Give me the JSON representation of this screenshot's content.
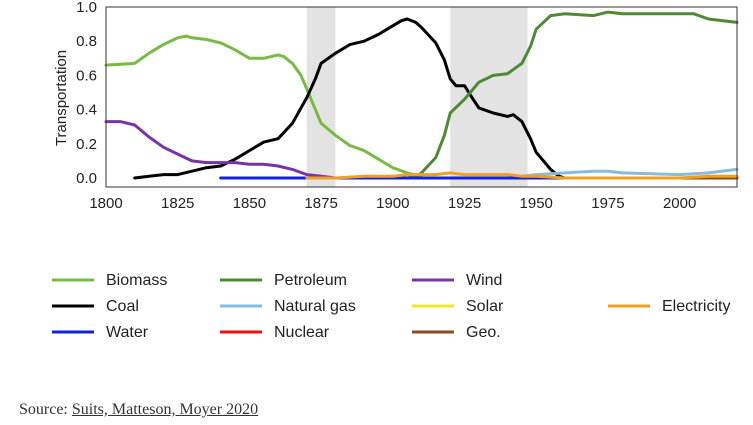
{
  "chart_data": {
    "type": "line",
    "title": "",
    "xlabel": "",
    "ylabel": "Transportation",
    "xlim": [
      1800,
      2020
    ],
    "ylim": [
      0,
      1.0
    ],
    "xticks": [
      "1800",
      "1825",
      "1850",
      "1875",
      "1900",
      "1925",
      "1950",
      "1975",
      "2000"
    ],
    "yticks": [
      "0.0",
      "0.2",
      "0.4",
      "0.6",
      "0.8",
      "1.0"
    ],
    "shaded_periods": [
      [
        1870,
        1880
      ],
      [
        1920,
        1947
      ]
    ],
    "grid": false,
    "legend_position": "below",
    "series": [
      {
        "name": "Biomass",
        "color": "#77bb44",
        "x": [
          1800,
          1810,
          1815,
          1820,
          1825,
          1828,
          1830,
          1835,
          1840,
          1845,
          1850,
          1855,
          1860,
          1862,
          1865,
          1868,
          1870,
          1873,
          1875,
          1880,
          1885,
          1890,
          1895,
          1900,
          1905,
          1910
        ],
        "y": [
          0.66,
          0.67,
          0.73,
          0.78,
          0.82,
          0.83,
          0.82,
          0.81,
          0.79,
          0.75,
          0.7,
          0.7,
          0.72,
          0.71,
          0.67,
          0.6,
          0.52,
          0.4,
          0.32,
          0.25,
          0.19,
          0.16,
          0.11,
          0.06,
          0.03,
          0.01
        ]
      },
      {
        "name": "Coal",
        "color": "#000000",
        "x": [
          1810,
          1815,
          1820,
          1825,
          1830,
          1835,
          1840,
          1845,
          1850,
          1855,
          1860,
          1865,
          1870,
          1873,
          1875,
          1880,
          1885,
          1890,
          1895,
          1900,
          1903,
          1905,
          1908,
          1910,
          1915,
          1918,
          1920,
          1922,
          1925,
          1928,
          1930,
          1935,
          1940,
          1942,
          1945,
          1948,
          1950,
          1955,
          1958,
          1960
        ],
        "y": [
          0.0,
          0.01,
          0.02,
          0.02,
          0.04,
          0.06,
          0.07,
          0.11,
          0.16,
          0.21,
          0.23,
          0.32,
          0.47,
          0.58,
          0.67,
          0.73,
          0.78,
          0.8,
          0.84,
          0.89,
          0.92,
          0.93,
          0.91,
          0.88,
          0.79,
          0.69,
          0.58,
          0.54,
          0.54,
          0.46,
          0.41,
          0.38,
          0.36,
          0.37,
          0.33,
          0.23,
          0.15,
          0.05,
          0.01,
          0.0
        ]
      },
      {
        "name": "Petroleum",
        "color": "#4e8a35",
        "x": [
          1870,
          1900,
          1905,
          1908,
          1910,
          1915,
          1918,
          1920,
          1925,
          1928,
          1930,
          1935,
          1940,
          1945,
          1948,
          1950,
          1955,
          1960,
          1970,
          1975,
          1980,
          1990,
          2000,
          2005,
          2010,
          2020
        ],
        "y": [
          0.0,
          0.0,
          0.0,
          0.01,
          0.03,
          0.12,
          0.25,
          0.38,
          0.46,
          0.52,
          0.56,
          0.6,
          0.61,
          0.67,
          0.77,
          0.87,
          0.95,
          0.96,
          0.95,
          0.97,
          0.96,
          0.96,
          0.96,
          0.96,
          0.93,
          0.91
        ]
      },
      {
        "name": "Natural gas",
        "color": "#88bbdd",
        "x": [
          1940,
          1950,
          1960,
          1970,
          1975,
          1980,
          2000,
          2010,
          2020
        ],
        "y": [
          0.0,
          0.02,
          0.03,
          0.04,
          0.04,
          0.03,
          0.02,
          0.03,
          0.05
        ]
      },
      {
        "name": "Nuclear",
        "color": "#ee1111",
        "x": [
          1950,
          2020
        ],
        "y": [
          0.0,
          0.0
        ]
      },
      {
        "name": "Wind",
        "color": "#7733aa",
        "x": [
          1800,
          1805,
          1810,
          1815,
          1820,
          1825,
          1830,
          1835,
          1840,
          1845,
          1850,
          1855,
          1860,
          1865,
          1870,
          1875,
          1880,
          1890
        ],
        "y": [
          0.33,
          0.33,
          0.31,
          0.24,
          0.18,
          0.14,
          0.1,
          0.09,
          0.09,
          0.09,
          0.08,
          0.08,
          0.07,
          0.05,
          0.02,
          0.01,
          0.0,
          0.0
        ]
      },
      {
        "name": "Solar",
        "color": "#f2e531",
        "x": [
          1990,
          2020
        ],
        "y": [
          0.0,
          0.0
        ]
      },
      {
        "name": "Geo.",
        "color": "#8b4a1c",
        "x": [
          1900,
          2020
        ],
        "y": [
          0.0,
          0.0
        ]
      },
      {
        "name": "Water",
        "color": "#1122dd",
        "x": [
          1840,
          1870,
          1900,
          1950,
          1970
        ],
        "y": [
          0.0,
          0.0,
          0.0,
          0.0,
          0.0
        ]
      },
      {
        "name": "Electricity",
        "color": "#f0a020",
        "x": [
          1870,
          1880,
          1890,
          1900,
          1905,
          1910,
          1915,
          1920,
          1925,
          1930,
          1935,
          1940,
          1945,
          1950,
          1960,
          1970,
          1980,
          1990,
          2000,
          2010,
          2020
        ],
        "y": [
          0.0,
          0.0,
          0.01,
          0.01,
          0.02,
          0.02,
          0.02,
          0.03,
          0.02,
          0.02,
          0.02,
          0.02,
          0.01,
          0.01,
          0.0,
          0.0,
          0.0,
          0.0,
          0.0,
          0.01,
          0.01
        ]
      }
    ],
    "legend_layout": [
      [
        "Biomass",
        "Petroleum",
        "Wind",
        null
      ],
      [
        "Coal",
        "Natural gas",
        "Solar",
        "Electricity"
      ],
      [
        "Water",
        "Nuclear",
        "Geo.",
        null
      ]
    ]
  },
  "source": {
    "prefix": "Source: ",
    "link_text": "Suits, Matteson, Moyer 2020"
  }
}
